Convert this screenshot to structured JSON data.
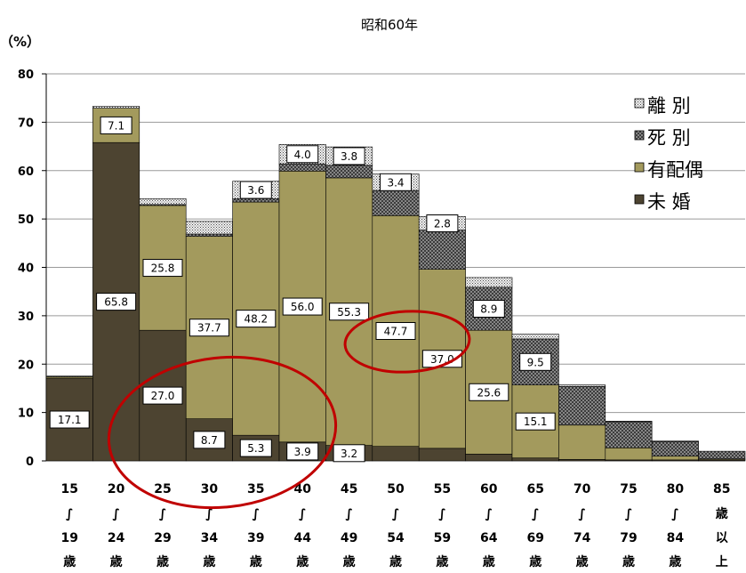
{
  "chart_data": {
    "type": "bar",
    "stacked": true,
    "title": "昭和60年",
    "ylabel": "（%）",
    "ylim": [
      0,
      80
    ],
    "yticks": [
      0,
      10,
      20,
      30,
      40,
      50,
      60,
      70,
      80
    ],
    "categories": [
      {
        "top": "15",
        "sep": "∫",
        "bottom": "19",
        "unit": "歳"
      },
      {
        "top": "20",
        "sep": "∫",
        "bottom": "24",
        "unit": "歳"
      },
      {
        "top": "25",
        "sep": "∫",
        "bottom": "29",
        "unit": "歳"
      },
      {
        "top": "30",
        "sep": "∫",
        "bottom": "34",
        "unit": "歳"
      },
      {
        "top": "35",
        "sep": "∫",
        "bottom": "39",
        "unit": "歳"
      },
      {
        "top": "40",
        "sep": "∫",
        "bottom": "44",
        "unit": "歳"
      },
      {
        "top": "45",
        "sep": "∫",
        "bottom": "49",
        "unit": "歳"
      },
      {
        "top": "50",
        "sep": "∫",
        "bottom": "54",
        "unit": "歳"
      },
      {
        "top": "55",
        "sep": "∫",
        "bottom": "59",
        "unit": "歳"
      },
      {
        "top": "60",
        "sep": "∫",
        "bottom": "64",
        "unit": "歳"
      },
      {
        "top": "65",
        "sep": "∫",
        "bottom": "69",
        "unit": "歳"
      },
      {
        "top": "70",
        "sep": "∫",
        "bottom": "74",
        "unit": "歳"
      },
      {
        "top": "75",
        "sep": "∫",
        "bottom": "79",
        "unit": "歳"
      },
      {
        "top": "80",
        "sep": "∫",
        "bottom": "84",
        "unit": "歳"
      },
      {
        "top": "85",
        "sep": "歳",
        "bottom": "以",
        "unit": "上"
      }
    ],
    "series": [
      {
        "name": "未 婚",
        "color": "#4d4431",
        "values": [
          17.1,
          65.8,
          27.0,
          8.7,
          5.3,
          3.9,
          3.2,
          3.0,
          2.6,
          1.4,
          0.6,
          0.3,
          0.2,
          0.2,
          0.2
        ],
        "labels": [
          "17.1",
          "65.8",
          "27.0",
          "8.7",
          "5.3",
          "3.9",
          "3.2",
          "",
          "",
          "",
          "",
          "",
          "",
          "",
          ""
        ]
      },
      {
        "name": "有配偶",
        "color": "#a39a5d",
        "values": [
          0.3,
          7.1,
          25.8,
          37.7,
          48.2,
          56.0,
          55.3,
          47.7,
          37.0,
          25.6,
          15.1,
          7.1,
          2.5,
          0.8,
          0.2
        ],
        "labels": [
          "",
          "7.1",
          "25.8",
          "37.7",
          "48.2",
          "56.0",
          "55.3",
          "47.7",
          "37.0",
          "25.6",
          "15.1",
          "",
          "",
          "",
          ""
        ]
      },
      {
        "name": "死 別",
        "color": "#9a9a9a",
        "values": [
          0.0,
          0.0,
          0.2,
          0.5,
          0.7,
          1.5,
          2.6,
          5.2,
          8.1,
          8.9,
          9.5,
          8.0,
          5.4,
          3.0,
          1.6
        ],
        "labels": [
          "",
          "",
          "",
          "",
          "",
          "",
          "",
          "",
          "",
          "8.9",
          "9.5",
          "",
          "",
          "",
          ""
        ]
      },
      {
        "name": "離 別",
        "color": "#dcdcdc",
        "values": [
          0.2,
          0.4,
          1.2,
          2.6,
          3.6,
          4.0,
          3.8,
          3.4,
          2.8,
          2.0,
          1.0,
          0.3,
          0.1,
          0.1,
          0.0
        ],
        "labels": [
          "",
          "",
          "",
          "",
          "3.6",
          "4.0",
          "3.8",
          "3.4",
          "2.8",
          "",
          "",
          "",
          "",
          "",
          ""
        ]
      }
    ],
    "legend": {
      "position": "top-right",
      "order": [
        "離 別",
        "死 別",
        "有配偶",
        "未 婚"
      ]
    },
    "grid": {
      "horizontal": true,
      "vertical": false
    },
    "annotations": [
      {
        "type": "ellipse",
        "color": "#c00000",
        "note": "circles younger age groups (never-married share)"
      },
      {
        "type": "ellipse",
        "color": "#c00000",
        "note": "circles ages 50-59 (married share)"
      }
    ]
  }
}
